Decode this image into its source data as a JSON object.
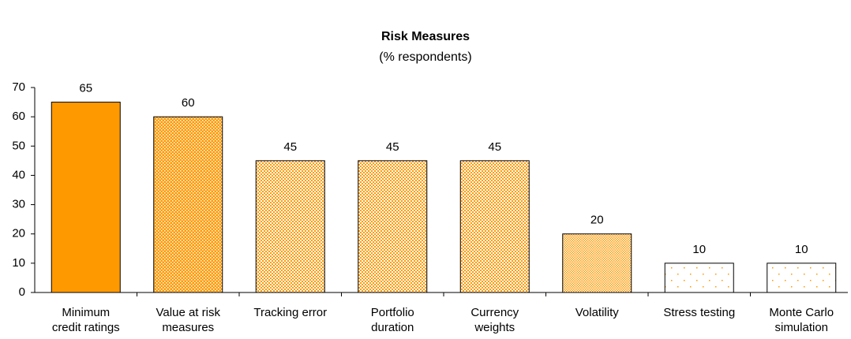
{
  "chart_data": {
    "type": "bar",
    "title": "Risk Measures",
    "subtitle": "(% respondents)",
    "categories": [
      [
        "Minimum",
        "credit ratings"
      ],
      [
        "Value at risk",
        "measures"
      ],
      [
        "Tracking error"
      ],
      [
        "Portfolio",
        "duration"
      ],
      [
        "Currency",
        "weights"
      ],
      [
        "Volatility"
      ],
      [
        "Stress testing"
      ],
      [
        "Monte Carlo",
        "simulation"
      ]
    ],
    "values": [
      65,
      60,
      45,
      45,
      45,
      20,
      10,
      10
    ],
    "color": "#ff9900",
    "patterns": [
      "solid",
      "dense-dots",
      "crosshatch",
      "crosshatch",
      "crosshatch",
      "fine-dots",
      "sparse-dots",
      "sparse-dots"
    ],
    "ylim": [
      0,
      70
    ],
    "yticks": [
      0,
      10,
      20,
      30,
      40,
      50,
      60,
      70
    ],
    "grid": false
  }
}
